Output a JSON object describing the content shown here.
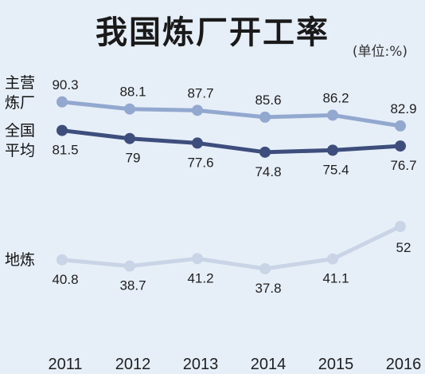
{
  "title": "我国炼厂开工率",
  "unit": "(单位:%)",
  "chart_data": {
    "type": "line",
    "title": "我国炼厂开工率",
    "unit": "(单位:%)",
    "categories": [
      "2011",
      "2012",
      "2013",
      "2014",
      "2015",
      "2016"
    ],
    "series": [
      {
        "name": "主营炼厂",
        "name_lines": [
          "主营",
          "炼厂"
        ],
        "color": "#93a8cf",
        "values": [
          90.3,
          88.1,
          87.7,
          85.6,
          86.2,
          82.9
        ]
      },
      {
        "name": "全国平均",
        "name_lines": [
          "全国",
          "平均"
        ],
        "color": "#3d4e7d",
        "values": [
          81.5,
          79,
          77.6,
          74.8,
          75.4,
          76.7
        ]
      },
      {
        "name": "地炼",
        "name_lines": [
          "地炼"
        ],
        "color": "#c9d4e6",
        "values": [
          40.8,
          38.7,
          41.2,
          37.8,
          41.1,
          52
        ]
      }
    ],
    "value_labels": [
      [
        "90.3",
        "88.1",
        "87.7",
        "85.6",
        "86.2",
        "82.9"
      ],
      [
        "81.5",
        "79",
        "77.6",
        "74.8",
        "75.4",
        "76.7"
      ],
      [
        "40.8",
        "38.7",
        "41.2",
        "37.8",
        "41.1",
        "52"
      ]
    ],
    "grid": false,
    "legend": "inline-left"
  }
}
